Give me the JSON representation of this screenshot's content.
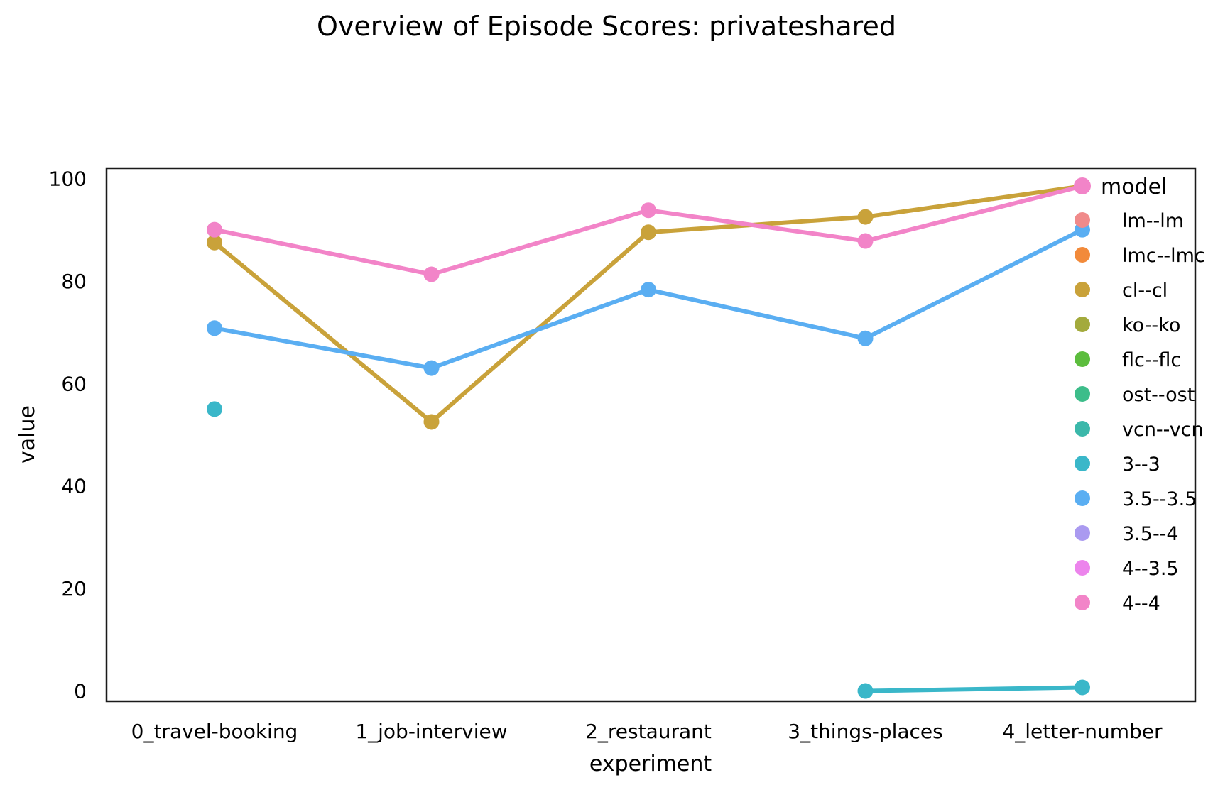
{
  "chart_data": {
    "type": "line",
    "title": "Overview of Episode Scores: privateshared",
    "xlabel": "experiment",
    "ylabel": "value",
    "categories": [
      "0_travel-booking",
      "1_job-interview",
      "2_restaurant",
      "3_things-places",
      "4_letter-number"
    ],
    "ylim": [
      -2,
      102
    ],
    "yticks": [
      0,
      20,
      40,
      60,
      80,
      100
    ],
    "grid": false,
    "legend": {
      "title": "model",
      "placement": "right",
      "entries": [
        {
          "name": "lm--lm",
          "color": "#f08a8a"
        },
        {
          "name": "lmc--lmc",
          "color": "#f28a3a"
        },
        {
          "name": "cl--cl",
          "color": "#c9a23a"
        },
        {
          "name": "ko--ko",
          "color": "#a3aa3c"
        },
        {
          "name": "flc--flc",
          "color": "#5cbd3d"
        },
        {
          "name": "ost--ost",
          "color": "#3dbd8a"
        },
        {
          "name": "vcn--vcn",
          "color": "#3bb8aa"
        },
        {
          "name": "3--3",
          "color": "#3ab7c9"
        },
        {
          "name": "3.5--3.5",
          "color": "#5aaef2"
        },
        {
          "name": "3.5--4",
          "color": "#aa9af0"
        },
        {
          "name": "4--3.5",
          "color": "#ec84ec"
        },
        {
          "name": "4--4",
          "color": "#f284c8"
        }
      ]
    },
    "series": [
      {
        "name": "cl--cl",
        "color": "#c9a23a",
        "values": [
          87.5,
          52.5,
          89.5,
          92.5,
          98.5
        ]
      },
      {
        "name": "3.5--3.5",
        "color": "#5aaef2",
        "values": [
          70.8,
          63.0,
          78.3,
          68.8,
          90.0
        ]
      },
      {
        "name": "3--3",
        "color": "#3ab7c9",
        "values": [
          55.0,
          null,
          null,
          0.0,
          0.7
        ]
      },
      {
        "name": "4--4",
        "color": "#f284c8",
        "values": [
          90.0,
          81.3,
          93.8,
          87.8,
          98.5
        ]
      }
    ]
  }
}
